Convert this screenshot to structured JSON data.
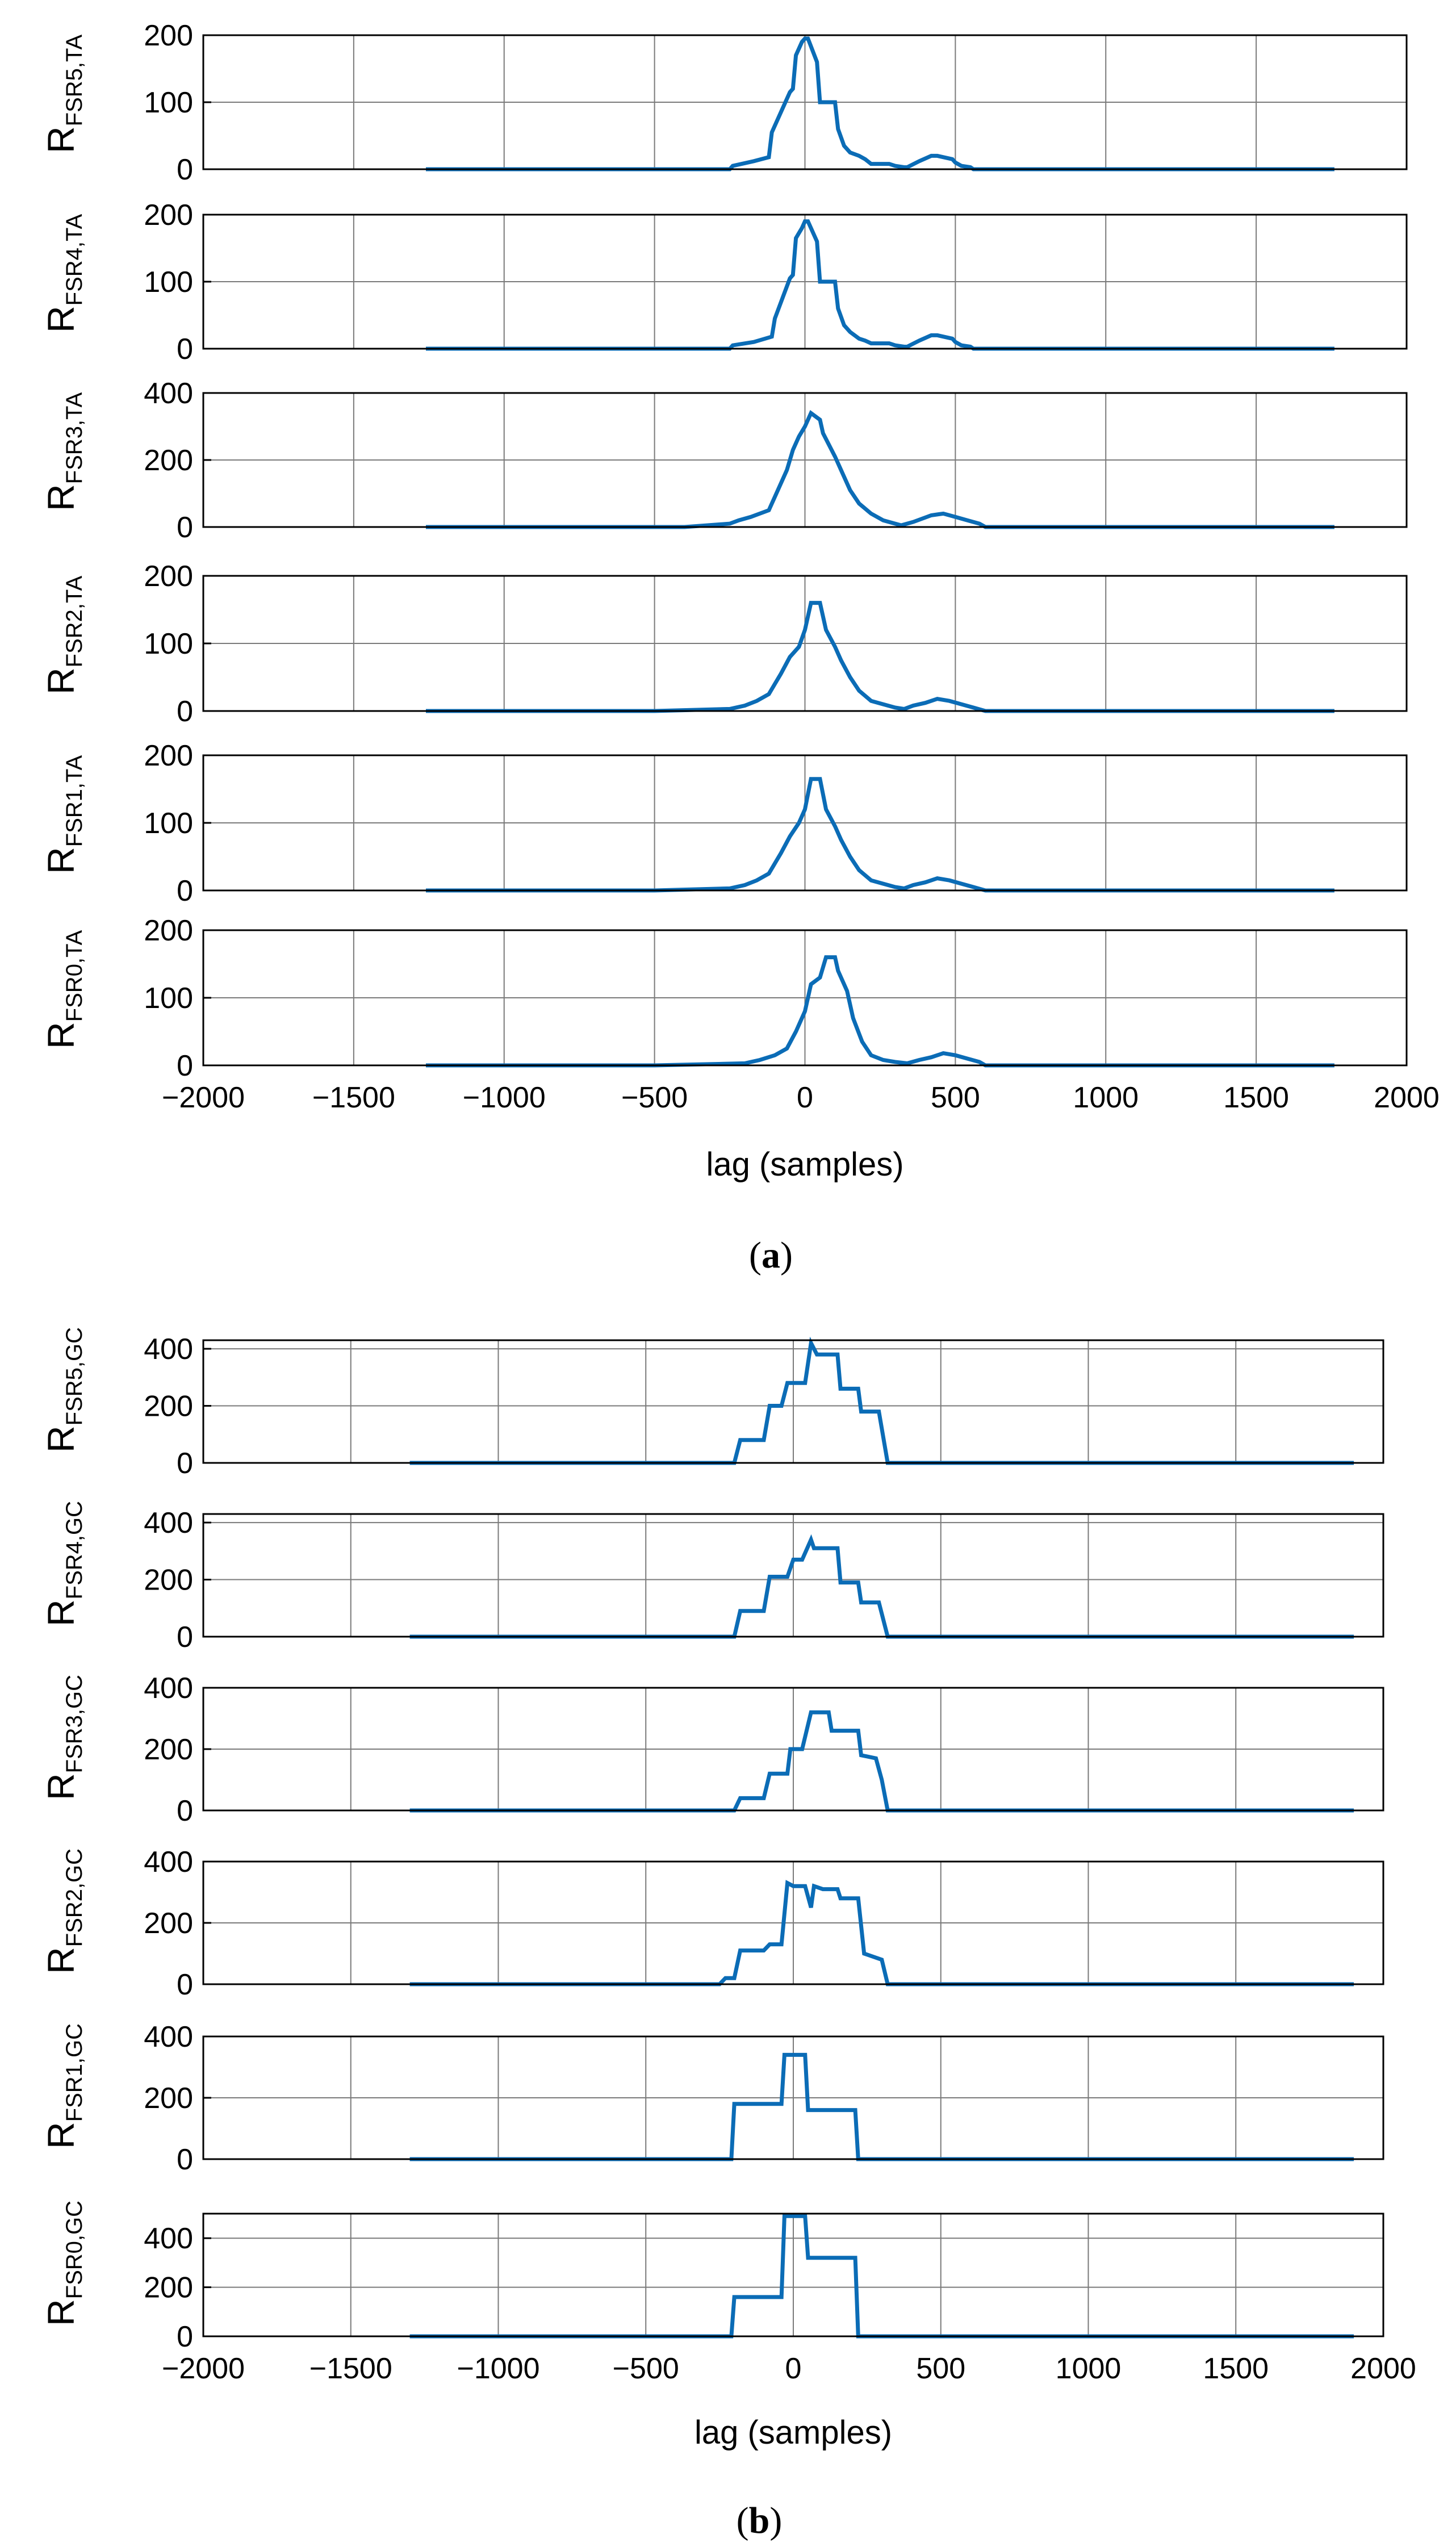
{
  "chart_data": [
    {
      "type": "line",
      "figure_label": "a",
      "caption_open": "(",
      "caption_close": ")",
      "xlabel": "lag (samples)",
      "xlim": [
        -2000,
        2000
      ],
      "xticks": [
        -2000,
        -1500,
        -1000,
        -500,
        0,
        500,
        1000,
        1500,
        2000
      ],
      "series_color": "#0b6cb6",
      "panels": [
        {
          "name": "FSR5,TA",
          "ylabel_main": "R",
          "ylabel_sub": "FSR5,TA",
          "ylim": [
            0,
            200
          ],
          "yticks": [
            0,
            100,
            200
          ],
          "x": [
            -1260,
            -250,
            -240,
            -170,
            -120,
            -110,
            -50,
            -40,
            -30,
            -10,
            0,
            10,
            40,
            50,
            100,
            110,
            130,
            150,
            180,
            200,
            220,
            280,
            300,
            330,
            340,
            380,
            420,
            440,
            490,
            500,
            520,
            550,
            560,
            1760
          ],
          "y": [
            0,
            0,
            5,
            12,
            18,
            55,
            115,
            120,
            170,
            190,
            195,
            195,
            160,
            100,
            100,
            60,
            35,
            25,
            20,
            15,
            8,
            8,
            5,
            3,
            3,
            12,
            20,
            20,
            15,
            10,
            5,
            3,
            0,
            0
          ]
        },
        {
          "name": "FSR4,TA",
          "ylabel_main": "R",
          "ylabel_sub": "FSR4,TA",
          "ylim": [
            0,
            200
          ],
          "yticks": [
            0,
            100,
            200
          ],
          "x": [
            -1260,
            -250,
            -240,
            -170,
            -110,
            -100,
            -50,
            -40,
            -30,
            -10,
            0,
            10,
            40,
            50,
            100,
            110,
            130,
            150,
            180,
            200,
            220,
            280,
            300,
            330,
            340,
            380,
            420,
            440,
            490,
            500,
            520,
            550,
            560,
            1760
          ],
          "y": [
            0,
            0,
            5,
            10,
            18,
            45,
            105,
            110,
            165,
            180,
            190,
            190,
            160,
            100,
            100,
            60,
            35,
            25,
            15,
            12,
            8,
            8,
            5,
            3,
            3,
            12,
            20,
            20,
            15,
            10,
            5,
            3,
            0,
            0
          ]
        },
        {
          "name": "FSR3,TA",
          "ylabel_main": "R",
          "ylabel_sub": "FSR3,TA",
          "ylim": [
            0,
            400
          ],
          "yticks": [
            0,
            200,
            400
          ],
          "x": [
            -1260,
            -400,
            -250,
            -220,
            -180,
            -150,
            -120,
            -100,
            -80,
            -60,
            -40,
            -20,
            0,
            20,
            50,
            60,
            100,
            120,
            150,
            180,
            220,
            260,
            300,
            320,
            360,
            420,
            460,
            500,
            540,
            580,
            600,
            1760
          ],
          "y": [
            0,
            0,
            10,
            20,
            30,
            40,
            50,
            90,
            130,
            170,
            230,
            270,
            300,
            340,
            320,
            280,
            210,
            170,
            110,
            70,
            40,
            20,
            10,
            5,
            15,
            35,
            40,
            30,
            20,
            10,
            0,
            0
          ]
        },
        {
          "name": "FSR2,TA",
          "ylabel_main": "R",
          "ylabel_sub": "FSR2,TA",
          "ylim": [
            0,
            200
          ],
          "yticks": [
            0,
            100,
            200
          ],
          "x": [
            -1260,
            -500,
            -250,
            -200,
            -160,
            -120,
            -100,
            -80,
            -50,
            -20,
            0,
            20,
            50,
            70,
            100,
            120,
            150,
            180,
            220,
            260,
            300,
            330,
            360,
            400,
            440,
            480,
            520,
            560,
            600,
            1760
          ],
          "y": [
            0,
            0,
            3,
            8,
            15,
            25,
            40,
            55,
            80,
            95,
            120,
            160,
            160,
            120,
            95,
            75,
            50,
            30,
            15,
            10,
            5,
            3,
            8,
            12,
            18,
            15,
            10,
            5,
            0,
            0
          ]
        },
        {
          "name": "FSR1,TA",
          "ylabel_main": "R",
          "ylabel_sub": "FSR1,TA",
          "ylim": [
            0,
            200
          ],
          "yticks": [
            0,
            100,
            200
          ],
          "x": [
            -1260,
            -500,
            -250,
            -200,
            -160,
            -120,
            -100,
            -80,
            -50,
            -20,
            0,
            20,
            50,
            70,
            100,
            120,
            150,
            180,
            220,
            260,
            300,
            330,
            360,
            400,
            440,
            480,
            520,
            560,
            600,
            1760
          ],
          "y": [
            0,
            0,
            3,
            8,
            15,
            25,
            40,
            55,
            80,
            100,
            120,
            165,
            165,
            120,
            95,
            75,
            50,
            30,
            15,
            10,
            5,
            3,
            8,
            12,
            18,
            15,
            10,
            5,
            0,
            0
          ]
        },
        {
          "name": "FSR0,TA",
          "ylabel_main": "R",
          "ylabel_sub": "FSR0,TA",
          "ylim": [
            0,
            200
          ],
          "yticks": [
            0,
            100,
            200
          ],
          "x": [
            -1260,
            -500,
            -200,
            -150,
            -100,
            -60,
            -30,
            0,
            20,
            50,
            70,
            100,
            110,
            140,
            160,
            190,
            220,
            260,
            300,
            340,
            380,
            420,
            460,
            500,
            540,
            580,
            600,
            1760
          ],
          "y": [
            0,
            0,
            3,
            8,
            15,
            25,
            50,
            80,
            120,
            130,
            160,
            160,
            140,
            110,
            70,
            35,
            15,
            8,
            5,
            3,
            8,
            12,
            18,
            15,
            10,
            5,
            0,
            0
          ]
        }
      ]
    },
    {
      "type": "line",
      "figure_label": "b",
      "caption_open": "(",
      "caption_close": ")",
      "xlabel": "lag (samples)",
      "xlim": [
        -2000,
        2000
      ],
      "xticks": [
        -2000,
        -1500,
        -1000,
        -500,
        0,
        500,
        1000,
        1500,
        2000
      ],
      "series_color": "#0b6cb6",
      "panels": [
        {
          "name": "FSR5,GC",
          "ylabel_main": "R",
          "ylabel_sub": "FSR5,GC",
          "ylim": [
            0,
            430
          ],
          "yticks": [
            0,
            200,
            400
          ],
          "x": [
            -1300,
            -200,
            -180,
            -100,
            -80,
            -40,
            -20,
            0,
            40,
            60,
            80,
            150,
            160,
            220,
            230,
            290,
            320,
            1900
          ],
          "y": [
            0,
            0,
            80,
            80,
            200,
            200,
            280,
            280,
            280,
            420,
            380,
            380,
            260,
            260,
            180,
            180,
            0,
            0
          ]
        },
        {
          "name": "FSR4,GC",
          "ylabel_main": "R",
          "ylabel_sub": "FSR4,GC",
          "ylim": [
            0,
            430
          ],
          "yticks": [
            0,
            200,
            400
          ],
          "x": [
            -1300,
            -200,
            -180,
            -100,
            -80,
            -20,
            0,
            30,
            60,
            70,
            90,
            150,
            160,
            220,
            230,
            290,
            320,
            1900
          ],
          "y": [
            0,
            0,
            90,
            90,
            210,
            210,
            270,
            270,
            340,
            310,
            310,
            310,
            190,
            190,
            120,
            120,
            0,
            0
          ]
        },
        {
          "name": "FSR3,GC",
          "ylabel_main": "R",
          "ylabel_sub": "FSR3,GC",
          "ylim": [
            0,
            400
          ],
          "yticks": [
            0,
            200,
            400
          ],
          "x": [
            -1300,
            -200,
            -180,
            -100,
            -80,
            -20,
            -10,
            30,
            60,
            120,
            130,
            220,
            230,
            280,
            300,
            320,
            1900
          ],
          "y": [
            0,
            0,
            40,
            40,
            120,
            120,
            200,
            200,
            320,
            320,
            260,
            260,
            180,
            170,
            100,
            0,
            0
          ]
        },
        {
          "name": "FSR2,GC",
          "ylabel_main": "R",
          "ylabel_sub": "FSR2,GC",
          "ylim": [
            0,
            400
          ],
          "yticks": [
            0,
            200,
            400
          ],
          "x": [
            -1300,
            -250,
            -230,
            -200,
            -180,
            -100,
            -80,
            -40,
            -20,
            0,
            40,
            60,
            70,
            100,
            150,
            160,
            220,
            240,
            300,
            320,
            1900
          ],
          "y": [
            0,
            0,
            20,
            20,
            110,
            110,
            130,
            130,
            330,
            320,
            320,
            250,
            320,
            310,
            310,
            280,
            280,
            100,
            80,
            0,
            0
          ]
        },
        {
          "name": "FSR1,GC",
          "ylabel_main": "R",
          "ylabel_sub": "FSR1,GC",
          "ylim": [
            0,
            400
          ],
          "yticks": [
            0,
            200,
            400
          ],
          "x": [
            -1300,
            -210,
            -200,
            -40,
            -30,
            40,
            50,
            210,
            220,
            1900
          ],
          "y": [
            0,
            0,
            180,
            180,
            340,
            340,
            160,
            160,
            0,
            0
          ]
        },
        {
          "name": "FSR0,GC",
          "ylabel_main": "R",
          "ylabel_sub": "FSR0,GC",
          "ylim": [
            0,
            500
          ],
          "yticks": [
            0,
            200,
            400
          ],
          "x": [
            -1300,
            -210,
            -200,
            -40,
            -30,
            40,
            50,
            210,
            220,
            1900
          ],
          "y": [
            0,
            0,
            160,
            160,
            490,
            490,
            320,
            320,
            0,
            0
          ]
        }
      ]
    }
  ]
}
